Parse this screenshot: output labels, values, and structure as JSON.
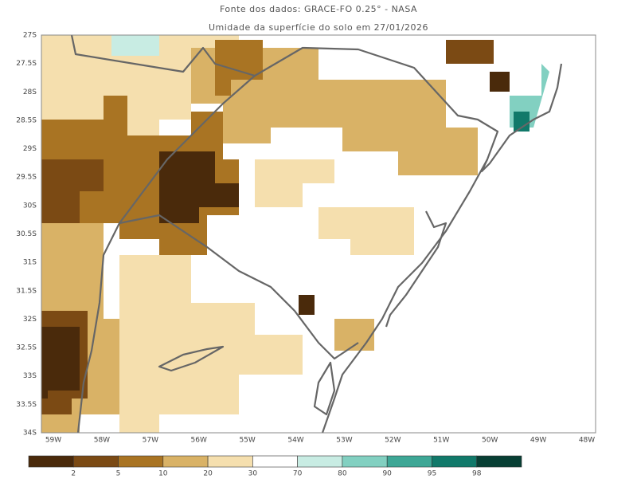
{
  "header": {
    "title": "Fonte dos dados: GRACE-FO 0.25° - NASA",
    "subtitle": "Umidade da superfície do solo em 27/01/2026"
  },
  "axes": {
    "y_labels": [
      "27S",
      "27.5S",
      "28S",
      "28.5S",
      "29S",
      "29.5S",
      "30S",
      "30.5S",
      "31S",
      "31.5S",
      "32S",
      "32.5S",
      "33S",
      "33.5S",
      "34S"
    ],
    "x_labels": [
      "59W",
      "58W",
      "57W",
      "56W",
      "55W",
      "54W",
      "53W",
      "52W",
      "51W",
      "50W",
      "49W",
      "48W"
    ]
  },
  "colorbar": {
    "colors": [
      "#4a2a0b",
      "#7b4a14",
      "#a97423",
      "#d9b266",
      "#f5dfae",
      "#ffffff",
      "#c8ece3",
      "#82d0c1",
      "#3ea796",
      "#11796a",
      "#083f34"
    ],
    "labels": [
      "2",
      "5",
      "10",
      "20",
      "30",
      "70",
      "80",
      "90",
      "95",
      "98"
    ]
  }
}
